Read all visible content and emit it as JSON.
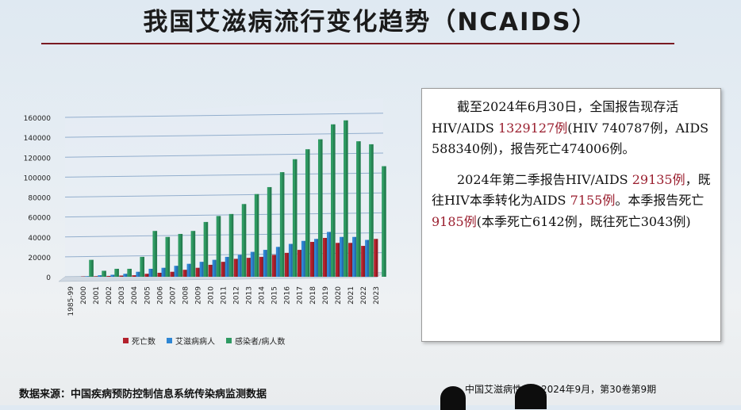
{
  "slide": {
    "title": "我国艾滋病流行变化趋势（NCAIDS）",
    "source": "数据来源：中国疾病预防控制信息系统传染病监测数据",
    "citation": "中国艾滋病性病，2024年9月，第30卷第9期"
  },
  "info_box": {
    "p1": [
      {
        "text": "截至2024年6月30日，全国报告现存活HIV/AIDS "
      },
      {
        "text": "1329127例",
        "hl": true
      },
      {
        "text": "(HIV 740787例，AIDS 588340例)，报告死亡474006例。"
      }
    ],
    "p2": [
      {
        "text": "2024年第二季报告HIV/AIDS "
      },
      {
        "text": "29135例",
        "hl": true
      },
      {
        "text": "，既往HIV本季转化为AIDS "
      },
      {
        "text": "7155例",
        "hl": true
      },
      {
        "text": "。本季报告死亡"
      },
      {
        "text": "9185例",
        "hl": true
      },
      {
        "text": "(本季死亡6142例，既往死亡3043例)"
      }
    ]
  },
  "chart_data": {
    "type": "bar",
    "categories": [
      "1985-99",
      "2000",
      "2001",
      "2002",
      "2003",
      "2004",
      "2005",
      "2006",
      "2007",
      "2008",
      "2009",
      "2010",
      "2011",
      "2012",
      "2013",
      "2014",
      "2015",
      "2016",
      "2017",
      "2018",
      "2019",
      "2020",
      "2021",
      "2022",
      "2023"
    ],
    "series": [
      {
        "name": "死亡数",
        "color": "#b3212c",
        "values": [
          0,
          300,
          500,
          800,
          1200,
          1500,
          3000,
          4000,
          5000,
          7000,
          9000,
          12000,
          15000,
          18000,
          19000,
          20000,
          22000,
          24000,
          27000,
          35000,
          39000,
          34000,
          34000,
          31000,
          38000
        ]
      },
      {
        "name": "艾滋病病人",
        "color": "#2e86d4",
        "values": [
          0,
          500,
          1500,
          2000,
          3000,
          5000,
          8000,
          9000,
          11000,
          13000,
          15000,
          17000,
          20000,
          22000,
          25000,
          27000,
          30000,
          33000,
          36000,
          38000,
          45000,
          40000,
          40000,
          37000,
          0
        ]
      },
      {
        "name": "感染者/病人数",
        "color": "#2e9a62",
        "values": [
          0,
          17000,
          6000,
          8000,
          8000,
          20000,
          46000,
          40000,
          43000,
          46000,
          55000,
          61000,
          63000,
          73000,
          83000,
          90000,
          105000,
          118000,
          128000,
          138000,
          153000,
          157000,
          136000,
          133000,
          111000
        ]
      }
    ],
    "ylim": [
      0,
      160000
    ],
    "yticks": [
      "0",
      "20000",
      "40000",
      "60000",
      "80000",
      "100000",
      "120000",
      "140000",
      "160000"
    ],
    "grid": true,
    "legend_position": "bottom"
  }
}
